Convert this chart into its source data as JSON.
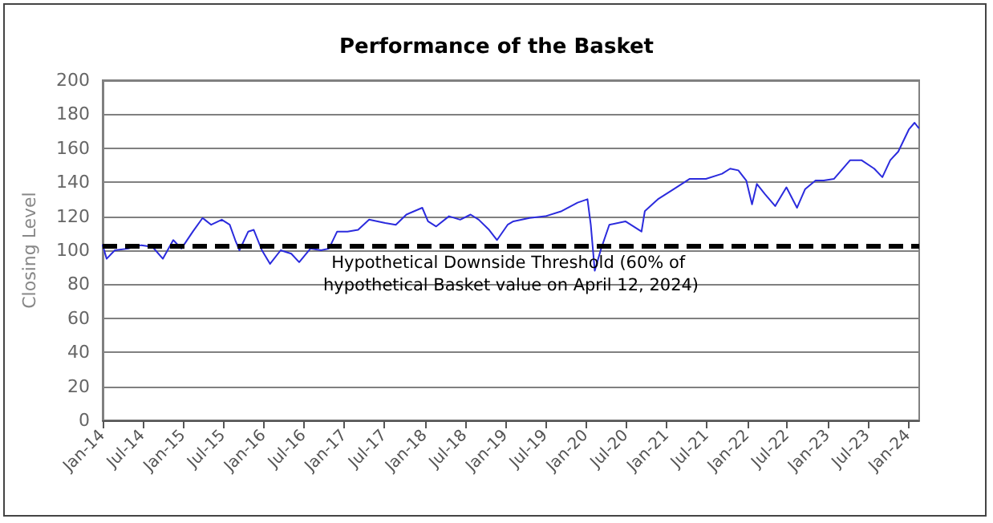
{
  "chart_data": {
    "type": "line",
    "title": "Performance of the Basket",
    "ylabel": "Closing Level",
    "x": [
      "2014-01-01",
      "2014-01-19",
      "2014-02-25",
      "2014-04-27",
      "2014-06-25",
      "2014-08-15",
      "2014-10-01",
      "2014-11-17",
      "2014-12-24",
      "2015-02-14",
      "2015-03-30",
      "2015-05-08",
      "2015-06-25",
      "2015-07-31",
      "2015-08-25",
      "2015-09-13",
      "2015-10-23",
      "2015-11-17",
      "2015-12-24",
      "2016-01-30",
      "2016-03-18",
      "2016-05-05",
      "2016-06-10",
      "2016-07-31",
      "2016-09-17",
      "2016-10-23",
      "2016-11-29",
      "2017-01-15",
      "2017-03-04",
      "2017-04-23",
      "2017-07-05",
      "2017-08-22",
      "2017-10-09",
      "2017-12-20",
      "2018-01-15",
      "2018-02-21",
      "2018-04-20",
      "2018-06-10",
      "2018-07-27",
      "2018-09-02",
      "2018-10-19",
      "2018-11-24",
      "2019-01-11",
      "2019-02-06",
      "2019-04-20",
      "2019-07-01",
      "2019-09-13",
      "2019-11-24",
      "2020-01-08",
      "2020-01-23",
      "2020-02-10",
      "2020-03-10",
      "2020-04-16",
      "2020-06-28",
      "2020-09-09",
      "2020-09-24",
      "2020-11-22",
      "2021-02-03",
      "2021-04-16",
      "2021-06-28",
      "2021-09-09",
      "2021-10-16",
      "2021-11-22",
      "2021-12-28",
      "2022-01-23",
      "2022-02-14",
      "2022-03-23",
      "2022-05-08",
      "2022-06-28",
      "2022-08-15",
      "2022-09-21",
      "2022-11-07",
      "2022-12-14",
      "2023-01-30",
      "2023-04-13",
      "2023-06-03",
      "2023-07-31",
      "2023-09-06",
      "2023-10-12",
      "2023-11-17",
      "2024-01-04",
      "2024-01-30",
      "2024-02-17"
    ],
    "series": [
      {
        "color": "#2b2bdd",
        "values": [
          103,
          95,
          100,
          101,
          103,
          102,
          95,
          106,
          101,
          111,
          119,
          115,
          118,
          115,
          106,
          100,
          111,
          112,
          100,
          92,
          100,
          98,
          93,
          101,
          100,
          101,
          111,
          111,
          112,
          118,
          116,
          115,
          121,
          125,
          117,
          114,
          120,
          118,
          121,
          118,
          112,
          106,
          115,
          117,
          119,
          120,
          123,
          128,
          130,
          115,
          88,
          101,
          115,
          117,
          111,
          123,
          130,
          136,
          142,
          142,
          145,
          148,
          147,
          141,
          127,
          139,
          133,
          126,
          137,
          125,
          136,
          141,
          141,
          142,
          153,
          153,
          148,
          143,
          153,
          158,
          171,
          175,
          172
        ]
      }
    ],
    "xlim": [
      "2014-01-01",
      "2024-02-20"
    ],
    "xticks": [
      {
        "value": "2014-01-01",
        "label": "Jan-14"
      },
      {
        "value": "2014-07-01",
        "label": "Jul-14"
      },
      {
        "value": "2015-01-01",
        "label": "Jan-15"
      },
      {
        "value": "2015-07-01",
        "label": "Jul-15"
      },
      {
        "value": "2016-01-01",
        "label": "Jan-16"
      },
      {
        "value": "2016-07-01",
        "label": "Jul-16"
      },
      {
        "value": "2017-01-01",
        "label": "Jan-17"
      },
      {
        "value": "2017-07-01",
        "label": "Jul-17"
      },
      {
        "value": "2018-01-01",
        "label": "Jan-18"
      },
      {
        "value": "2018-07-01",
        "label": "Jul-18"
      },
      {
        "value": "2019-01-01",
        "label": "Jan-19"
      },
      {
        "value": "2019-07-01",
        "label": "Jul-19"
      },
      {
        "value": "2020-01-01",
        "label": "Jan-20"
      },
      {
        "value": "2020-07-01",
        "label": "Jul-20"
      },
      {
        "value": "2021-01-01",
        "label": "Jan-21"
      },
      {
        "value": "2021-07-01",
        "label": "Jul-21"
      },
      {
        "value": "2022-01-01",
        "label": "Jan-22"
      },
      {
        "value": "2022-07-01",
        "label": "Jul-22"
      },
      {
        "value": "2023-01-01",
        "label": "Jan-23"
      },
      {
        "value": "2023-07-01",
        "label": "Jul-23"
      },
      {
        "value": "2024-01-01",
        "label": "Jan-24"
      }
    ],
    "ylim": [
      0,
      200
    ],
    "yticks": [
      0,
      20,
      40,
      60,
      80,
      100,
      120,
      140,
      160,
      180,
      200
    ],
    "ref_lines": [
      {
        "axis": "y",
        "value": 103,
        "label": "Hypothetical Downside Threshold (60% of hypothetical Basket value on April 12, 2024)",
        "color": "#000000",
        "line_style": "dashed"
      }
    ],
    "grid": "y",
    "marker": "none",
    "line_style": "solid"
  }
}
